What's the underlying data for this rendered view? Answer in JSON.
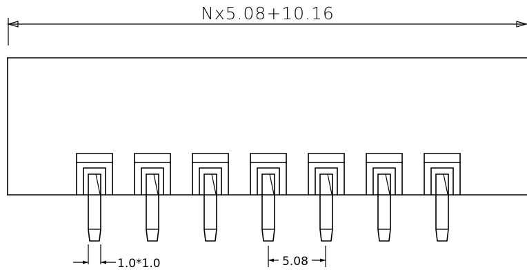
{
  "dimensions": {
    "overall_length": "Nx5.08+10.16",
    "pin_section": "1.0*1.0",
    "pitch": "5.08"
  },
  "pins": {
    "visible_count": 7
  }
}
